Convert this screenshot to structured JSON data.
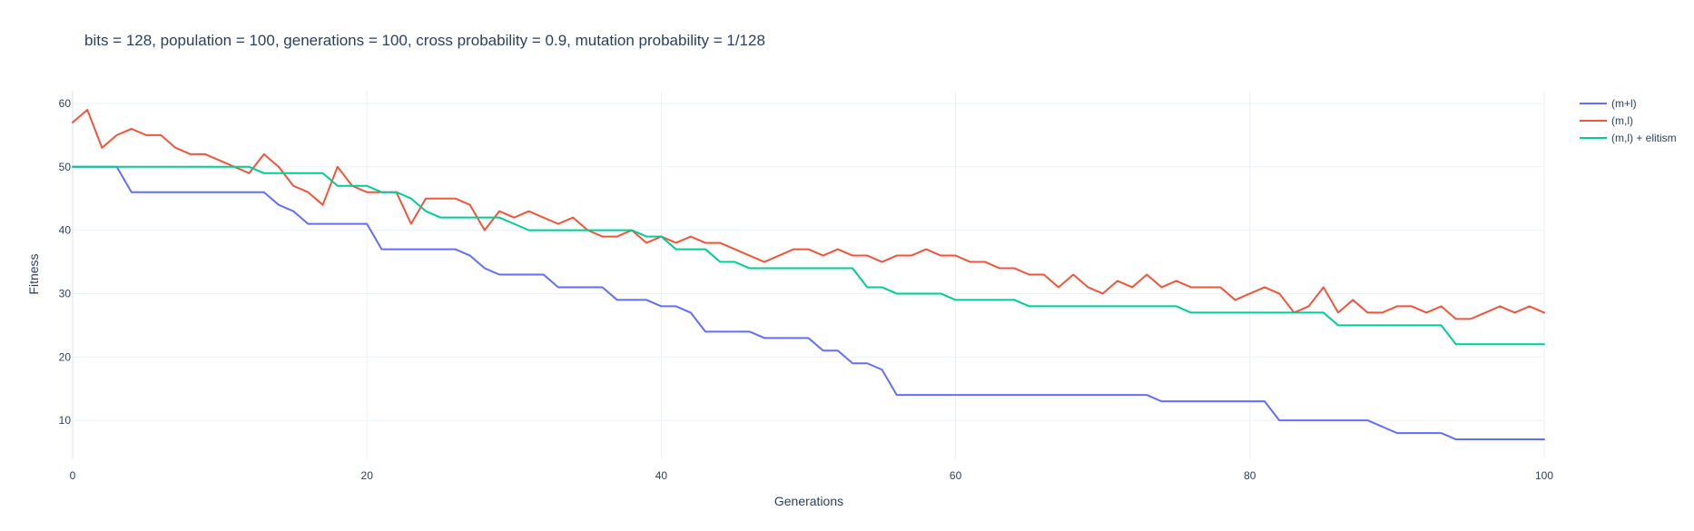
{
  "chart_data": {
    "type": "line",
    "title": "bits = 128, population = 100, generations = 100, cross probability = 0.9, mutation probability = 1/128",
    "xlabel": "Generations",
    "ylabel": "Fitness",
    "xlim": [
      0,
      100
    ],
    "ylim": [
      4,
      62
    ],
    "x_ticks": [
      0,
      20,
      40,
      60,
      80,
      100
    ],
    "y_ticks": [
      10,
      20,
      30,
      40,
      50,
      60
    ],
    "grid": true,
    "legend_position": "top-right",
    "x": [
      0,
      1,
      2,
      3,
      4,
      5,
      6,
      7,
      8,
      9,
      10,
      11,
      12,
      13,
      14,
      15,
      16,
      17,
      18,
      19,
      20,
      21,
      22,
      23,
      24,
      25,
      26,
      27,
      28,
      29,
      30,
      31,
      32,
      33,
      34,
      35,
      36,
      37,
      38,
      39,
      40,
      41,
      42,
      43,
      44,
      45,
      46,
      47,
      48,
      49,
      50,
      51,
      52,
      53,
      54,
      55,
      56,
      57,
      58,
      59,
      60,
      61,
      62,
      63,
      64,
      65,
      66,
      67,
      68,
      69,
      70,
      71,
      72,
      73,
      74,
      75,
      76,
      77,
      78,
      79,
      80,
      81,
      82,
      83,
      84,
      85,
      86,
      87,
      88,
      89,
      90,
      91,
      92,
      93,
      94,
      95,
      96,
      97,
      98,
      99,
      100
    ],
    "series": [
      {
        "name": "(m+l)",
        "color": "#636efa",
        "values": [
          50,
          50,
          50,
          50,
          46,
          46,
          46,
          46,
          46,
          46,
          46,
          46,
          46,
          46,
          44,
          43,
          41,
          41,
          41,
          41,
          41,
          37,
          37,
          37,
          37,
          37,
          37,
          36,
          34,
          33,
          33,
          33,
          33,
          31,
          31,
          31,
          31,
          29,
          29,
          29,
          28,
          28,
          27,
          24,
          24,
          24,
          24,
          23,
          23,
          23,
          23,
          21,
          21,
          19,
          19,
          18,
          14,
          14,
          14,
          14,
          14,
          14,
          14,
          14,
          14,
          14,
          14,
          14,
          14,
          14,
          14,
          14,
          14,
          14,
          13,
          13,
          13,
          13,
          13,
          13,
          13,
          13,
          10,
          10,
          10,
          10,
          10,
          10,
          10,
          9,
          8,
          8,
          8,
          8,
          7,
          7,
          7,
          7,
          7,
          7,
          7
        ]
      },
      {
        "name": "(m,l)",
        "color": "#ef553b",
        "values": [
          57,
          59,
          53,
          55,
          56,
          55,
          55,
          53,
          52,
          52,
          51,
          50,
          49,
          52,
          50,
          47,
          46,
          44,
          50,
          47,
          46,
          46,
          46,
          41,
          45,
          45,
          45,
          44,
          40,
          43,
          42,
          43,
          42,
          41,
          42,
          40,
          39,
          39,
          40,
          38,
          39,
          38,
          39,
          38,
          38,
          37,
          36,
          35,
          36,
          37,
          37,
          36,
          37,
          36,
          36,
          35,
          36,
          36,
          37,
          36,
          36,
          35,
          35,
          34,
          34,
          33,
          33,
          31,
          33,
          31,
          30,
          32,
          31,
          33,
          31,
          32,
          31,
          31,
          31,
          29,
          30,
          31,
          30,
          27,
          28,
          31,
          27,
          29,
          27,
          27,
          28,
          28,
          27,
          28,
          26,
          26,
          27,
          28,
          27,
          28,
          27
        ]
      },
      {
        "name": "(m,l) + elitism",
        "color": "#00cc96",
        "values": [
          50,
          50,
          50,
          50,
          50,
          50,
          50,
          50,
          50,
          50,
          50,
          50,
          50,
          49,
          49,
          49,
          49,
          49,
          47,
          47,
          47,
          46,
          46,
          45,
          43,
          42,
          42,
          42,
          42,
          42,
          41,
          40,
          40,
          40,
          40,
          40,
          40,
          40,
          40,
          39,
          39,
          37,
          37,
          37,
          35,
          35,
          34,
          34,
          34,
          34,
          34,
          34,
          34,
          34,
          31,
          31,
          30,
          30,
          30,
          30,
          29,
          29,
          29,
          29,
          29,
          28,
          28,
          28,
          28,
          28,
          28,
          28,
          28,
          28,
          28,
          28,
          27,
          27,
          27,
          27,
          27,
          27,
          27,
          27,
          27,
          27,
          25,
          25,
          25,
          25,
          25,
          25,
          25,
          25,
          22,
          22,
          22,
          22,
          22,
          22,
          22
        ]
      }
    ]
  }
}
